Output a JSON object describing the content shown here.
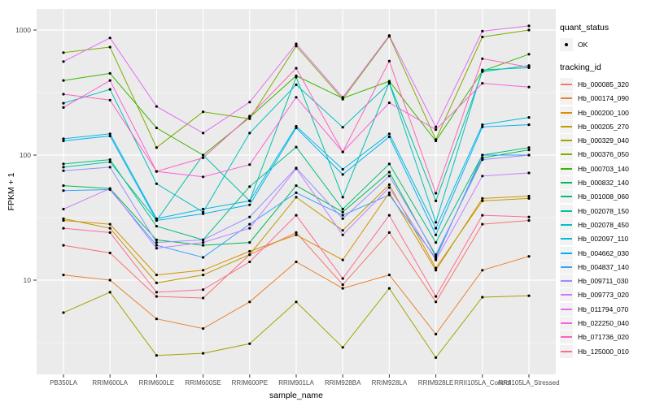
{
  "figure": {
    "x_axis_title": "sample_name",
    "y_axis_title": "FPKM + 1"
  },
  "legend": {
    "quant_status_title": "quant_status",
    "quant_status_items": [
      {
        "label": "OK",
        "marker": "black-point"
      }
    ],
    "tracking_id_title": "tracking_id"
  },
  "colors": {
    "panel_bg": "#EBEBEB",
    "grid": "#FFFFFF",
    "legend_key_bg": "#F2F2F2",
    "axis_text": "#4D4D4D",
    "tick": "#333333",
    "point": "#000000"
  },
  "chart_data": {
    "type": "line",
    "title": "",
    "xlabel": "sample_name",
    "ylabel": "FPKM + 1",
    "y_scale": "log10",
    "y_ticks": [
      10,
      100,
      1000
    ],
    "y_minor_ticks": [
      3.162,
      31.62,
      316.2
    ],
    "ylim": [
      1.77,
      1476
    ],
    "grid": "grey-panel-white-lines",
    "legend_position": "right",
    "marker": "black-point",
    "categories": [
      "PB350LA",
      "RRIM600LA",
      "RRIM600LE",
      "RRIM600SE",
      "RRIM600PE",
      "RRIM901LA",
      "RRIM928BA",
      "RRIM928LA",
      "RRIM928LE",
      "RRII105LA_Control",
      "RRII105LA_Stressed"
    ],
    "series": [
      {
        "name": "Hb_000085_320",
        "color": "#F8766D",
        "values": [
          19,
          16.5,
          7.4,
          7.2,
          16,
          24,
          9.2,
          24,
          6.7,
          28,
          30
        ]
      },
      {
        "name": "Hb_000174_090",
        "color": "#EA8331",
        "values": [
          11,
          10,
          4.9,
          4.1,
          6.7,
          14,
          8.6,
          11,
          3.7,
          12,
          15.5
        ]
      },
      {
        "name": "Hb_000200_100",
        "color": "#D89000",
        "values": [
          30,
          28,
          11,
          12,
          17,
          23,
          14.5,
          50,
          12,
          45,
          47
        ]
      },
      {
        "name": "Hb_000205_270",
        "color": "#C09B00",
        "values": [
          31,
          26,
          9.5,
          11,
          16,
          46,
          25,
          58,
          12.5,
          43,
          45
        ]
      },
      {
        "name": "Hb_000329_040",
        "color": "#A3A500",
        "values": [
          5.5,
          8,
          2.5,
          2.6,
          3.1,
          6.7,
          2.9,
          8.6,
          2.4,
          7.3,
          7.5
        ]
      },
      {
        "name": "Hb_000376_050",
        "color": "#7CAE00",
        "values": [
          660,
          730,
          115,
          222,
          195,
          745,
          280,
          890,
          133,
          880,
          1000
        ]
      },
      {
        "name": "Hb_000703_140",
        "color": "#39B600",
        "values": [
          395,
          450,
          165,
          100,
          200,
          430,
          285,
          390,
          130,
          470,
          640
        ]
      },
      {
        "name": "Hb_000832_140",
        "color": "#00BB4E",
        "values": [
          57,
          54,
          21,
          19,
          20,
          57,
          35,
          73,
          15.5,
          95,
          110
        ]
      },
      {
        "name": "Hb_001008_060",
        "color": "#00BF7D",
        "values": [
          85,
          92,
          27,
          21,
          56,
          116,
          37,
          85,
          20,
          100,
          115
        ]
      },
      {
        "name": "Hb_002078_150",
        "color": "#00C1A3",
        "values": [
          80,
          88,
          30,
          100,
          43,
          420,
          46,
          380,
          43,
          465,
          520
        ]
      },
      {
        "name": "Hb_002078_450",
        "color": "#00BFC4",
        "values": [
          260,
          335,
          59,
          35,
          150,
          365,
          167,
          375,
          29,
          480,
          500
        ]
      },
      {
        "name": "Hb_002097_110",
        "color": "#00BAE0",
        "values": [
          135,
          148,
          31,
          37,
          43,
          170,
          77,
          148,
          26,
          175,
          200
        ]
      },
      {
        "name": "Hb_004662_030",
        "color": "#00B0F6",
        "values": [
          130,
          142,
          30,
          34,
          40,
          165,
          70,
          140,
          23,
          168,
          175
        ]
      },
      {
        "name": "Hb_004837_140",
        "color": "#35A2FF",
        "values": [
          52,
          53,
          19,
          15.2,
          28,
          50,
          33,
          48,
          15,
          100,
          100
        ]
      },
      {
        "name": "Hb_009711_030",
        "color": "#9590FF",
        "values": [
          75,
          80,
          20,
          21,
          32,
          79,
          31,
          68,
          16,
          92,
          100
        ]
      },
      {
        "name": "Hb_009773_020",
        "color": "#C77CFF",
        "values": [
          37,
          54,
          18,
          20,
          26,
          78,
          23,
          55,
          14.5,
          68,
          72
        ]
      },
      {
        "name": "Hb_011794_070",
        "color": "#E76BF3",
        "values": [
          560,
          865,
          245,
          150,
          265,
          775,
          290,
          905,
          168,
          980,
          1080
        ]
      },
      {
        "name": "Hb_022250_040",
        "color": "#FA62DB",
        "values": [
          240,
          395,
          74,
          67,
          84,
          290,
          106,
          262,
          160,
          375,
          350
        ]
      },
      {
        "name": "Hb_071736_020",
        "color": "#FF62BC",
        "values": [
          307,
          275,
          74,
          95,
          205,
          495,
          106,
          565,
          49.5,
          590,
          505
        ]
      },
      {
        "name": "Hb_125000_010",
        "color": "#FF6A98",
        "values": [
          26,
          24,
          8,
          8.4,
          14,
          33,
          10.3,
          33,
          7.4,
          33,
          32
        ]
      }
    ]
  }
}
